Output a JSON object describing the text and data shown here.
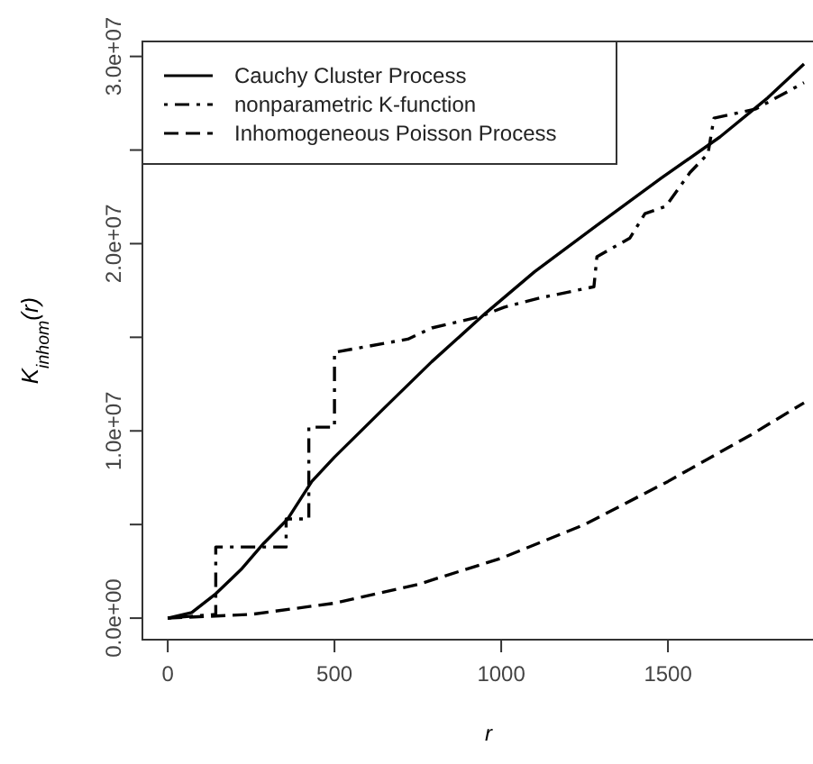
{
  "chart_data": {
    "type": "line",
    "xlabel": "r",
    "ylabel": "K$_{inhom}$(r)",
    "xlim": [
      -76,
      1935
    ],
    "ylim": [
      -1150000,
      30800000
    ],
    "xticks": [
      0,
      500,
      1000,
      1500
    ],
    "yticks": [
      {
        "value": 0,
        "label": "0.0e+00"
      },
      {
        "value": 5000000,
        "label": null
      },
      {
        "value": 10000000,
        "label": "1.0e+07"
      },
      {
        "value": 15000000,
        "label": null
      },
      {
        "value": 20000000,
        "label": "2.0e+07"
      },
      {
        "value": 25000000,
        "label": null
      },
      {
        "value": 30000000,
        "label": "3.0e+07"
      }
    ],
    "grid": false,
    "legend": "top left",
    "series": [
      {
        "name": "Cauchy Cluster Process",
        "color": "#000000",
        "line_style": "solid",
        "x": [
          0,
          72,
          144,
          220,
          288,
          360,
          432,
          500,
          648,
          792,
          954,
          1100,
          1296,
          1480,
          1656,
          1800,
          1908
        ],
        "values": [
          0,
          300000,
          1300000,
          2600000,
          4000000,
          5300000,
          7300000,
          8600000,
          11200000,
          13700000,
          16300000,
          18500000,
          21100000,
          23500000,
          25700000,
          27800000,
          29600000
        ]
      },
      {
        "name": "nonparametric K-function",
        "color": "#000000",
        "line_style": "dashdot",
        "x": [
          0,
          144,
          144,
          355,
          355,
          423,
          423,
          500,
          500,
          720,
          792,
          936,
          1008,
          1116,
          1278,
          1287,
          1386,
          1431,
          1494,
          1566,
          1620,
          1638,
          1764,
          1908
        ],
        "values": [
          0,
          200000,
          3800000,
          3800000,
          5300000,
          5300000,
          10200000,
          10200000,
          14200000,
          14900000,
          15500000,
          16100000,
          16600000,
          17100000,
          17700000,
          19300000,
          20300000,
          21600000,
          22000000,
          23800000,
          24800000,
          26700000,
          27200000,
          28600000
        ]
      },
      {
        "name": "Inhomogeneous Poisson Process",
        "color": "#000000",
        "line_style": "dashed",
        "x": [
          0,
          250,
          500,
          750,
          1000,
          1250,
          1500,
          1750,
          1908
        ],
        "values": [
          0,
          200000,
          800000,
          1800000,
          3200000,
          5000000,
          7300000,
          9800000,
          11500000
        ]
      }
    ]
  }
}
